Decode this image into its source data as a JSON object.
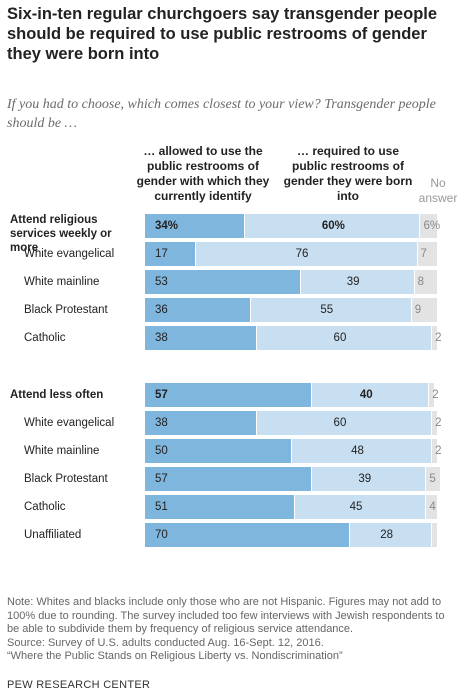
{
  "title": "Six-in-ten regular churchgoers say transgender people should be required to use public restrooms of gender they were born into",
  "subtitle": "If you had to choose, which comes closest to your view? Transgender people should be …",
  "chart_data": {
    "type": "bar",
    "orientation": "horizontal",
    "stacked": true,
    "series": [
      {
        "name": "… allowed to use the public restrooms of gender with which they currently identify",
        "color": "#7fb6de"
      },
      {
        "name": "… required to use public restrooms of gender they were born into",
        "color": "#c8dff1"
      },
      {
        "name": "No answer",
        "color": "#e3e3e3"
      }
    ],
    "groups": [
      {
        "rows": [
          {
            "label": "Attend religious services weekly or more",
            "allowed": 34,
            "required": 60,
            "no_answer": 6,
            "allowed_label": "34%",
            "required_label": "60%",
            "no_answer_label": "6%",
            "bold": true
          },
          {
            "label": "White evangelical",
            "allowed": 17,
            "required": 76,
            "no_answer": 7,
            "allowed_label": "17",
            "required_label": "76",
            "no_answer_label": "7",
            "bold": false
          },
          {
            "label": "White mainline",
            "allowed": 53,
            "required": 39,
            "no_answer": 8,
            "allowed_label": "53",
            "required_label": "39",
            "no_answer_label": "8",
            "bold": false
          },
          {
            "label": "Black Protestant",
            "allowed": 36,
            "required": 55,
            "no_answer": 9,
            "allowed_label": "36",
            "required_label": "55",
            "no_answer_label": "9",
            "bold": false
          },
          {
            "label": "Catholic",
            "allowed": 38,
            "required": 60,
            "no_answer": 2,
            "allowed_label": "38",
            "required_label": "60",
            "no_answer_label": "2",
            "bold": false
          }
        ]
      },
      {
        "rows": [
          {
            "label": "Attend less often",
            "allowed": 57,
            "required": 40,
            "no_answer": 2,
            "allowed_label": "57",
            "required_label": "40",
            "no_answer_label": "2",
            "bold": true
          },
          {
            "label": "White evangelical",
            "allowed": 38,
            "required": 60,
            "no_answer": 2,
            "allowed_label": "38",
            "required_label": "60",
            "no_answer_label": "2",
            "bold": false
          },
          {
            "label": "White mainline",
            "allowed": 50,
            "required": 48,
            "no_answer": 2,
            "allowed_label": "50",
            "required_label": "48",
            "no_answer_label": "2",
            "bold": false
          },
          {
            "label": "Black Protestant",
            "allowed": 57,
            "required": 39,
            "no_answer": 5,
            "allowed_label": "57",
            "required_label": "39",
            "no_answer_label": "5",
            "bold": false
          },
          {
            "label": "Catholic",
            "allowed": 51,
            "required": 45,
            "no_answer": 4,
            "allowed_label": "51",
            "required_label": "45",
            "no_answer_label": "4",
            "bold": false
          },
          {
            "label": "Unaffiliated",
            "allowed": 70,
            "required": 28,
            "no_answer": 2,
            "allowed_label": "70",
            "required_label": "28",
            "no_answer_label": "",
            "bold": false
          }
        ]
      }
    ]
  },
  "column_headers": {
    "allowed": "… allowed to use the public restrooms of gender with which they currently identify",
    "required": "… required to use public restrooms of gender they were born into",
    "no_answer": "No answer"
  },
  "notes": {
    "note": "Note: Whites and blacks include only those who are not Hispanic. Figures may not add to 100% due to rounding.  The survey included too few interviews with Jewish respondents to be able to subdivide them by frequency of religious service attendance.",
    "source": "Source: Survey of U.S. adults conducted Aug. 16-Sept. 12, 2016.",
    "report": "“Where the Public Stands on Religious Liberty vs. Nondiscrimination”"
  },
  "brand": "PEW RESEARCH CENTER"
}
